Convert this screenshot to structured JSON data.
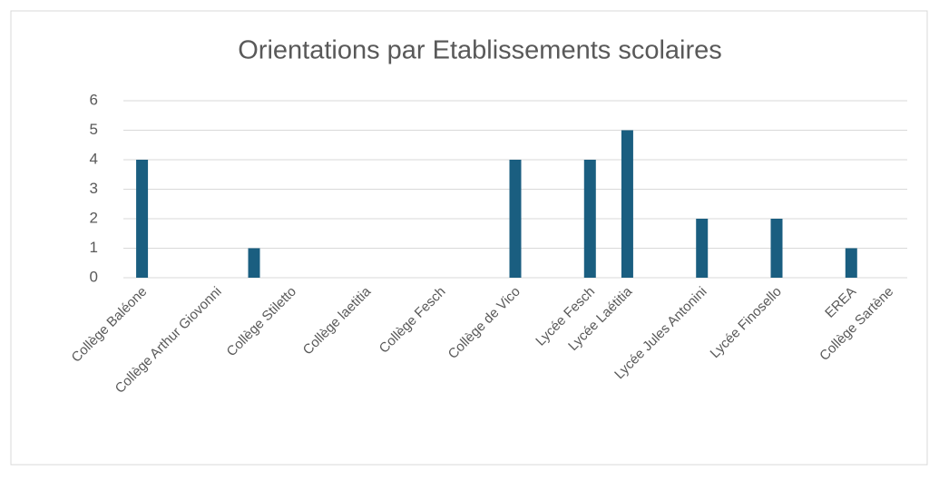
{
  "chart_data": {
    "type": "bar",
    "title": "Orientations par Etablissements scolaires",
    "categories": [
      "Collège Baléone",
      null,
      "Collège Arthur Giovonni",
      null,
      "Collège Stiletto",
      null,
      "Collège laetitia",
      null,
      "Collège Fesch",
      null,
      "Collège de Vico",
      null,
      "Lycée Fesch",
      "Lycée Laétitia",
      null,
      "Lycée Jules Antonini",
      null,
      "Lycée Finosello",
      null,
      "EREA",
      "Collège Sartène"
    ],
    "values": [
      4,
      0,
      0,
      1,
      0,
      0,
      0,
      0,
      0,
      0,
      4,
      0,
      4,
      5,
      0,
      2,
      0,
      2,
      0,
      1,
      0
    ],
    "color": "#1a5e80",
    "ylim": [
      0,
      6
    ],
    "yticks": [
      0,
      1,
      2,
      3,
      4,
      5,
      6
    ],
    "grid": true
  }
}
